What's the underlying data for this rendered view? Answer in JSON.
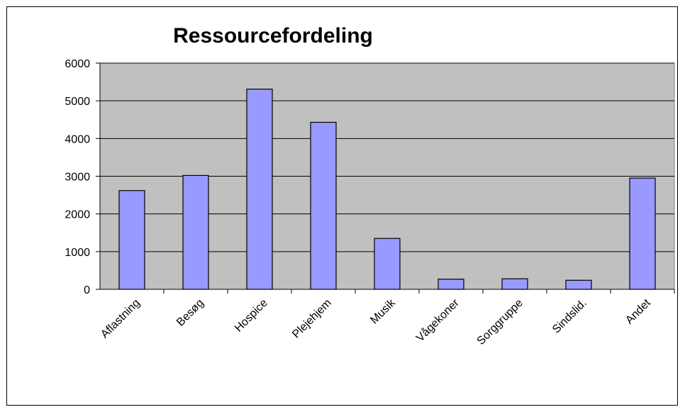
{
  "chart_data": {
    "type": "bar",
    "title": "Ressourcefordeling",
    "xlabel": "",
    "ylabel": "",
    "categories": [
      "Aflastning",
      "Besøg",
      "Hospice",
      "Plejehjem",
      "Musik",
      "Vågekoner",
      "Sorggruppe",
      "Sindslid.",
      "Andet"
    ],
    "values": [
      2620,
      3020,
      5310,
      4430,
      1350,
      270,
      280,
      240,
      2950
    ],
    "ylim": [
      0,
      6000
    ],
    "yticks": [
      0,
      1000,
      2000,
      3000,
      4000,
      5000,
      6000
    ],
    "grid": true,
    "legend": "none",
    "colors": {
      "plot_background": "#c0c0c0",
      "bar_fill": "#9999ff",
      "bar_stroke": "#000000",
      "gridline": "#000000"
    }
  }
}
